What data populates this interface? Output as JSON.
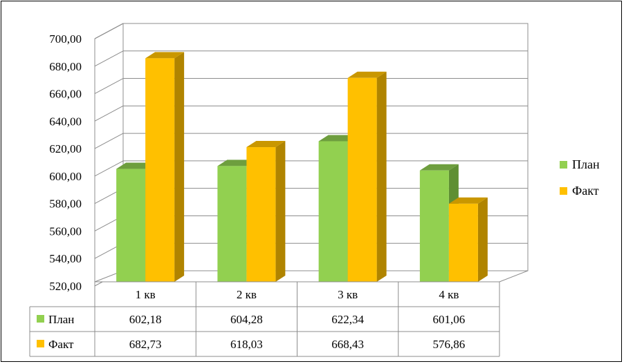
{
  "chart_data": {
    "type": "bar",
    "style": "3d-clustered-column-with-data-table",
    "categories": [
      "1 кв",
      "2 кв",
      "3 кв",
      "4 кв"
    ],
    "series": [
      {
        "name": "План",
        "values": [
          602.18,
          604.28,
          622.34,
          601.06
        ],
        "labels": [
          "602,18",
          "604,28",
          "622,34",
          "601,06"
        ],
        "color": "#92D050",
        "side_color": "#5F8F33",
        "top_color": "#6E9E3E"
      },
      {
        "name": "Факт",
        "values": [
          682.73,
          618.03,
          668.43,
          576.86
        ],
        "labels": [
          "682,73",
          "618,03",
          "668,43",
          "576,86"
        ],
        "color": "#FFC000",
        "side_color": "#B08400",
        "top_color": "#C99700"
      }
    ],
    "ylim": [
      520,
      700
    ],
    "yticks": [
      "520,00",
      "540,00",
      "560,00",
      "580,00",
      "600,00",
      "620,00",
      "640,00",
      "660,00",
      "680,00",
      "700,00"
    ],
    "grid": true,
    "legend_position": "right"
  }
}
